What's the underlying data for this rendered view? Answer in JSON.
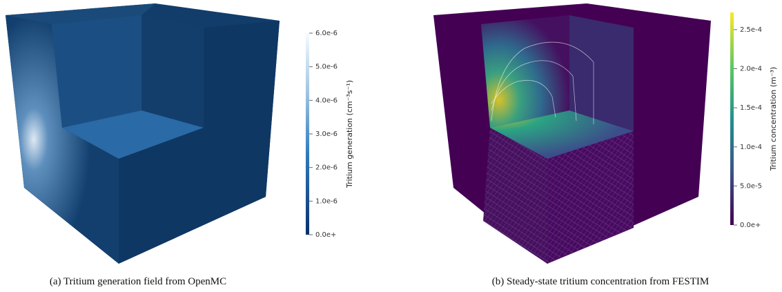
{
  "panels": [
    {
      "caption": "(a) Tritium generation field from OpenMC",
      "colorbar": {
        "label": "Tritium generation (cm⁻³s⁻¹)",
        "range": [
          0,
          6e-06
        ],
        "ticks": [
          {
            "value": 0,
            "label": "0.0e+"
          },
          {
            "value": 1e-06,
            "label": "1.0e-6"
          },
          {
            "value": 2e-06,
            "label": "2.0e-6"
          },
          {
            "value": 3e-06,
            "label": "3.0e-6"
          },
          {
            "value": 4e-06,
            "label": "4.0e-6"
          },
          {
            "value": 5e-06,
            "label": "5.0e-6"
          },
          {
            "value": 6e-06,
            "label": "6.0e-6"
          }
        ]
      }
    },
    {
      "caption": "(b) Steady-state tritium concentration from FESTIM",
      "colorbar": {
        "label": "Tritium concentration (m⁻³)",
        "range": [
          0,
          0.000272
        ],
        "ticks": [
          {
            "value": 0,
            "label": "0.0e+"
          },
          {
            "value": 5e-05,
            "label": "5.0e-5"
          },
          {
            "value": 0.0001,
            "label": "1.0e-4"
          },
          {
            "value": 0.00015,
            "label": "1.5e-4"
          },
          {
            "value": 0.0002,
            "label": "2.0e-4"
          },
          {
            "value": 0.00025,
            "label": "2.5e-4"
          }
        ]
      }
    }
  ]
}
